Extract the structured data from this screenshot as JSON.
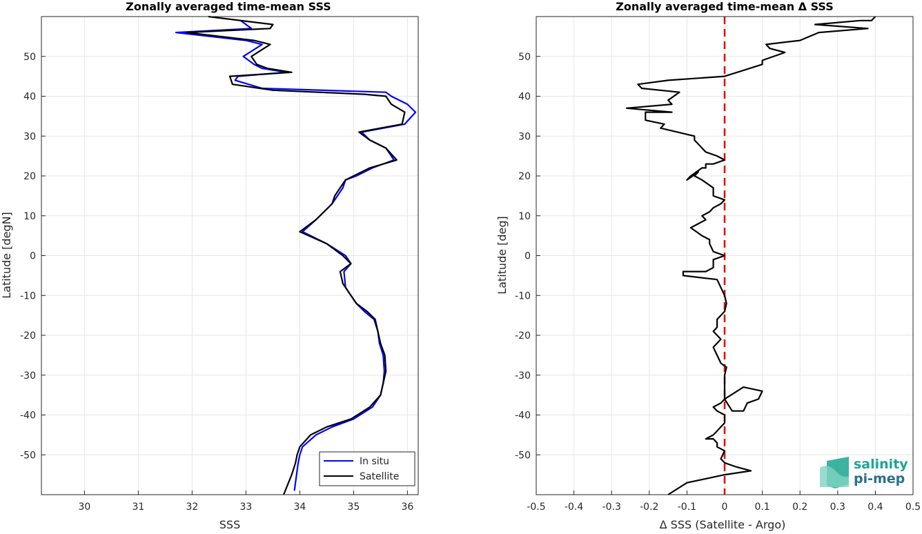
{
  "charts": {
    "left": {
      "title": "Zonally averaged time-mean SSS",
      "xlabel": "SSS",
      "ylabel": "Latitude [degN]",
      "xticks": [
        30,
        31,
        32,
        33,
        34,
        35,
        36
      ],
      "yticks": [
        -50,
        -40,
        -30,
        -20,
        -10,
        0,
        10,
        20,
        30,
        40,
        50
      ],
      "legend": [
        "In situ",
        "Satellite"
      ]
    },
    "right": {
      "title": "Zonally averaged time-mean Δ SSS",
      "xlabel": "Δ SSS (Satellite - Argo)",
      "ylabel": "Latitude [deg]",
      "xticks": [
        -0.5,
        -0.4,
        -0.3,
        -0.2,
        -0.1,
        0,
        0.1,
        0.2,
        0.3,
        0.4,
        0.5
      ],
      "yticks": [
        -50,
        -40,
        -30,
        -20,
        -10,
        0,
        10,
        20,
        30,
        40,
        50
      ]
    }
  },
  "logo": {
    "line1": "salinity",
    "line2": "pi-mep"
  },
  "chart_data": [
    {
      "type": "line",
      "title": "Zonally averaged time-mean SSS",
      "xlabel": "SSS",
      "ylabel": "Latitude [degN]",
      "xlim": [
        29.2,
        36.2
      ],
      "ylim": [
        -60,
        60
      ],
      "grid": true,
      "legend_position": "bottom-right",
      "series": [
        {
          "name": "In situ",
          "color": "#0000ff",
          "x": [
            33.9,
            33.95,
            33.97,
            34.0,
            34.05,
            34.3,
            34.6,
            35.0,
            35.35,
            35.5,
            35.55,
            35.57,
            35.55,
            35.48,
            35.45,
            35.38,
            35.2,
            35.05,
            34.95,
            34.85,
            34.82,
            34.95,
            34.85,
            34.5,
            34.05,
            34.3,
            34.45,
            34.6,
            34.7,
            34.8,
            34.85,
            35.05,
            35.35,
            35.75,
            35.6,
            35.3,
            35.15,
            35.95,
            36.15,
            36.0,
            35.7,
            35.6,
            33.3,
            32.8,
            32.85,
            33.75,
            33.3,
            33.15,
            32.95,
            33.3,
            33.0,
            31.7,
            33.1,
            32.9
          ],
          "y": [
            -59,
            -54,
            -52,
            -50,
            -48,
            -45,
            -43,
            -41,
            -38,
            -35,
            -32,
            -29,
            -25,
            -22,
            -19,
            -16,
            -14,
            -12,
            -10,
            -8,
            -4,
            -2,
            0,
            3,
            6,
            9,
            11,
            13,
            15,
            17,
            19,
            20,
            22,
            24,
            27,
            29,
            31,
            33,
            36,
            38,
            40,
            41,
            42,
            44,
            45,
            46,
            47,
            48,
            50,
            53,
            54,
            56,
            57,
            59
          ]
        },
        {
          "name": "Satellite",
          "color": "#000000",
          "x": [
            33.7,
            33.85,
            33.92,
            33.95,
            34.0,
            34.2,
            34.5,
            34.95,
            35.3,
            35.5,
            35.55,
            35.6,
            35.58,
            35.5,
            35.45,
            35.4,
            35.25,
            35.05,
            34.95,
            34.8,
            34.75,
            34.95,
            34.8,
            34.5,
            34.0,
            34.3,
            34.45,
            34.6,
            34.65,
            34.75,
            34.85,
            35.0,
            35.3,
            35.8,
            35.6,
            35.3,
            35.1,
            35.9,
            35.95,
            35.7,
            35.6,
            35.2,
            33.5,
            32.75,
            32.7,
            33.85,
            33.4,
            33.2,
            33.1,
            33.45,
            33.15,
            31.9,
            33.45,
            33.5,
            32.3
          ],
          "y": [
            -60,
            -55,
            -52,
            -50,
            -48,
            -45,
            -43,
            -41,
            -38,
            -35,
            -32,
            -29,
            -25,
            -22,
            -19,
            -16,
            -14,
            -12,
            -10,
            -7,
            -4,
            -2,
            0,
            3,
            6,
            9,
            11,
            13,
            15,
            17,
            19,
            20,
            22,
            24,
            27,
            29,
            31,
            33,
            36,
            38,
            40,
            40.5,
            41.5,
            43,
            45,
            46,
            47,
            48,
            50,
            53,
            54,
            56,
            57,
            58,
            60
          ]
        }
      ]
    },
    {
      "type": "line",
      "title": "Zonally averaged time-mean Δ SSS",
      "xlabel": "Δ SSS (Satellite - Argo)",
      "ylabel": "Latitude [deg]",
      "xlim": [
        -0.5,
        0.5
      ],
      "ylim": [
        -60,
        60
      ],
      "grid": true,
      "series": [
        {
          "name": "",
          "color": "#000000",
          "x": [
            -0.15,
            -0.1,
            -0.05,
            0.0,
            0.07,
            0.03,
            0.0,
            -0.01,
            0.0,
            -0.02,
            -0.02,
            -0.03,
            -0.05,
            -0.03,
            -0.02,
            -0.01,
            0.0,
            0.0,
            -0.02,
            -0.03,
            -0.01,
            0.0,
            0.05,
            0.1,
            0.09,
            0.06,
            0.05,
            0.02,
            0.0,
            0.0,
            0.005,
            -0.01,
            -0.02,
            -0.03,
            -0.01,
            -0.02,
            -0.03,
            -0.02,
            -0.02,
            0.0,
            0.005,
            0.0,
            -0.02,
            -0.11,
            -0.11,
            -0.05,
            -0.03,
            -0.03,
            0.0,
            -0.03,
            -0.04,
            -0.04,
            -0.06,
            -0.09,
            -0.05,
            -0.06,
            -0.04,
            -0.03,
            -0.01,
            0.0,
            -0.03,
            -0.03,
            -0.06,
            -0.08,
            -0.07,
            -0.1,
            -0.09,
            -0.06,
            -0.05,
            -0.05,
            -0.03,
            0.0,
            -0.02,
            -0.05,
            -0.06,
            -0.07,
            -0.08,
            -0.08,
            -0.17,
            -0.16,
            -0.21,
            -0.21,
            -0.14,
            -0.26,
            -0.14,
            -0.15,
            -0.12,
            -0.22,
            -0.23,
            -0.15,
            0.0,
            0.1,
            0.1,
            0.16,
            0.12,
            0.11,
            0.2,
            0.25,
            0.38,
            0.24,
            0.36,
            0.39,
            0.4
          ],
          "y": [
            -60,
            -57,
            -56,
            -55,
            -54,
            -53,
            -52,
            -51,
            -49,
            -48,
            -47,
            -46,
            -46,
            -45,
            -44,
            -43,
            -42,
            -40,
            -39,
            -38,
            -37,
            -36,
            -33,
            -34,
            -36,
            -37,
            -39,
            -39,
            -36,
            -30,
            -28,
            -27,
            -25,
            -23,
            -21,
            -20,
            -19,
            -18,
            -16,
            -14,
            -12,
            -10,
            -6,
            -5,
            -4,
            -4,
            -3,
            -1,
            0,
            1,
            3,
            4,
            5,
            7,
            9,
            10,
            11,
            12,
            13,
            14,
            15,
            17,
            19,
            20,
            21,
            19,
            20,
            22,
            22,
            23,
            23,
            24,
            25,
            26,
            27,
            28,
            29,
            30,
            32,
            33,
            34,
            36,
            36,
            37,
            38,
            39,
            41,
            42,
            43,
            44,
            45,
            48,
            49,
            51,
            52,
            53,
            54,
            56,
            57,
            58,
            59,
            59,
            60
          ]
        }
      ]
    }
  ]
}
